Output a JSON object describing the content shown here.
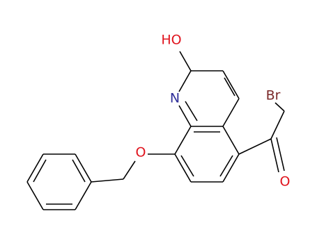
{
  "atoms": [
    {
      "label": "HO"
    },
    {
      "label": "N"
    },
    {
      "label": "O"
    },
    {
      "label": "O"
    },
    {
      "label": "Br"
    }
  ]
}
